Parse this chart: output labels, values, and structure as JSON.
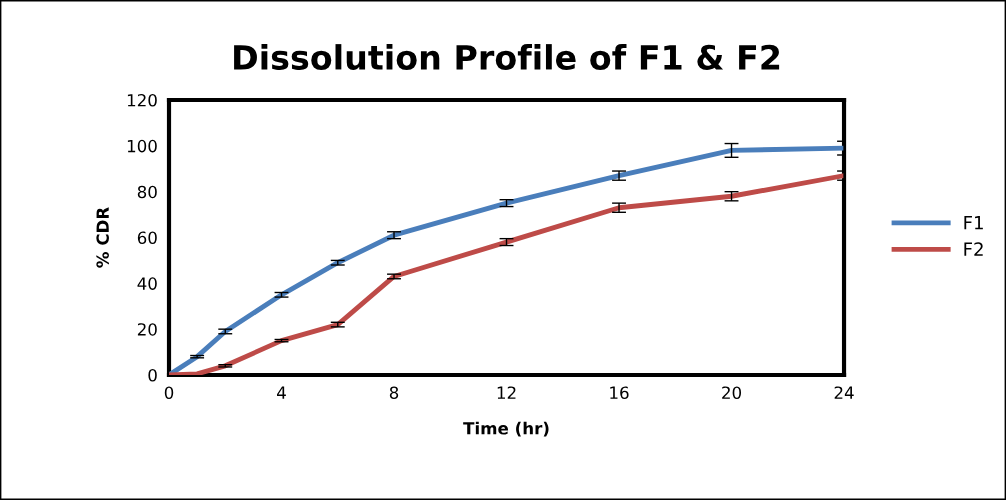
{
  "chart_data": {
    "type": "line",
    "title": "Dissolution Profile of F1 & F2",
    "xlabel": "Time (hr)",
    "ylabel": "% CDR",
    "x": [
      0,
      1,
      2,
      4,
      6,
      8,
      12,
      16,
      20,
      24
    ],
    "series": [
      {
        "name": "F1",
        "color": "#4a7ebb",
        "values": [
          0,
          8,
          19,
          35,
          49,
          61,
          75,
          87,
          98,
          99
        ],
        "errors": [
          null,
          0.5,
          1,
          1,
          1,
          1.5,
          1.5,
          2,
          3,
          3
        ]
      },
      {
        "name": "F2",
        "color": "#be4b48",
        "values": [
          0,
          0.5,
          4,
          15,
          22,
          43,
          58,
          73,
          78,
          87
        ],
        "errors": [
          null,
          null,
          0.5,
          0.5,
          1,
          1,
          1.5,
          2,
          2,
          2
        ]
      }
    ],
    "xlim": [
      0,
      24
    ],
    "xticks": [
      0,
      4,
      8,
      12,
      16,
      20,
      24
    ],
    "ylim": [
      0,
      120
    ],
    "yticks": [
      0,
      20,
      40,
      60,
      80,
      100,
      120
    ],
    "grid": false,
    "legend": "right",
    "marker": "none",
    "line_style": "solid"
  }
}
